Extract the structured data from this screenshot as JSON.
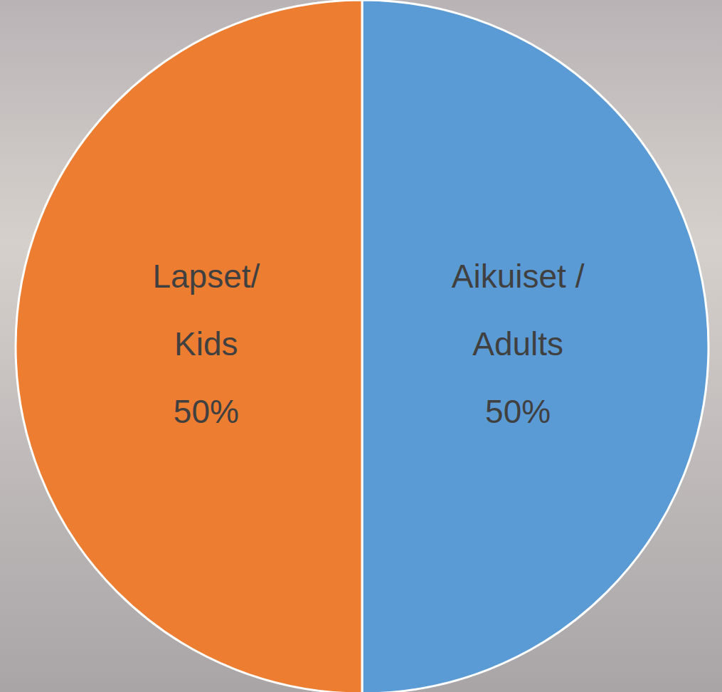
{
  "chart_data": {
    "type": "pie",
    "categories": [
      "Aikuiset / Adults",
      "Lapset/ Kids"
    ],
    "values": [
      50,
      50
    ],
    "value_labels": [
      "50%",
      "50%"
    ],
    "colors": [
      "#5B9BD5",
      "#ED7D31"
    ],
    "data_labels": true
  }
}
